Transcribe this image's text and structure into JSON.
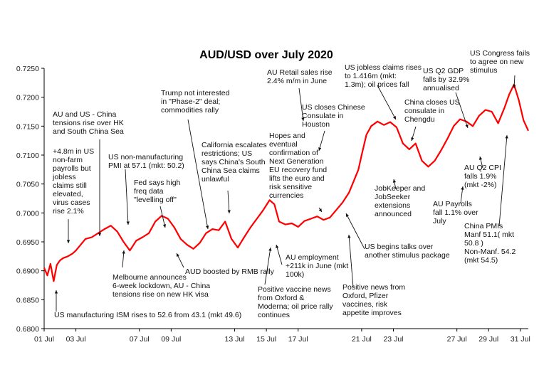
{
  "chart_data": {
    "type": "line",
    "title": "AUD/USD over July 2020",
    "xlabel": "",
    "ylabel": "",
    "ylim": [
      0.68,
      0.725
    ],
    "xlim_days": [
      1,
      31.5
    ],
    "grid": false,
    "x_ticks": [
      "01 Jul",
      "03 Jul",
      "07 Jul",
      "09 Jul",
      "13 Jul",
      "15 Jul",
      "17 Jul",
      "21 Jul",
      "23 Jul",
      "27 Jul",
      "29 Jul",
      "31 Jul"
    ],
    "y_ticks": [
      "0.6800",
      "0.6850",
      "0.6900",
      "0.6950",
      "0.7000",
      "0.7050",
      "0.7100",
      "0.7150",
      "0.7200",
      "0.7250"
    ],
    "series": [
      {
        "color": "#ff0000",
        "x": [
          1.0,
          1.2,
          1.4,
          1.6,
          1.8,
          2.0,
          2.2,
          2.5,
          2.8,
          3.0,
          3.3,
          3.6,
          4.0,
          4.4,
          4.8,
          5.2,
          5.6,
          6.0,
          6.4,
          6.8,
          7.2,
          7.6,
          8.0,
          8.4,
          8.8,
          9.2,
          9.6,
          10.0,
          10.4,
          10.8,
          11.2,
          11.6,
          12.0,
          12.4,
          12.8,
          13.2,
          13.6,
          14.0,
          14.4,
          14.8,
          15.2,
          15.5,
          15.8,
          16.2,
          16.6,
          17.0,
          17.4,
          17.8,
          18.2,
          18.6,
          19.0,
          19.4,
          19.8,
          20.2,
          20.5,
          20.8,
          21.0,
          21.3,
          21.6,
          22.0,
          22.4,
          22.8,
          23.2,
          23.6,
          24.0,
          24.4,
          24.8,
          25.2,
          25.6,
          26.0,
          26.4,
          26.8,
          27.2,
          27.6,
          28.0,
          28.4,
          28.8,
          29.2,
          29.6,
          30.0,
          30.3,
          30.6,
          30.9,
          31.2,
          31.5
        ],
        "y": [
          0.6905,
          0.6892,
          0.6912,
          0.6882,
          0.691,
          0.6918,
          0.6922,
          0.6925,
          0.693,
          0.6935,
          0.6945,
          0.6955,
          0.6958,
          0.6965,
          0.6972,
          0.6978,
          0.6968,
          0.695,
          0.6935,
          0.6952,
          0.6958,
          0.6965,
          0.6985,
          0.6995,
          0.699,
          0.6975,
          0.6955,
          0.6945,
          0.6938,
          0.6948,
          0.6965,
          0.6972,
          0.697,
          0.6985,
          0.6955,
          0.694,
          0.6958,
          0.6975,
          0.699,
          0.7005,
          0.7022,
          0.7015,
          0.6985,
          0.698,
          0.6982,
          0.6976,
          0.6986,
          0.699,
          0.6994,
          0.6988,
          0.6992,
          0.7005,
          0.7018,
          0.7035,
          0.7055,
          0.7075,
          0.71,
          0.7135,
          0.715,
          0.7158,
          0.7152,
          0.7157,
          0.7148,
          0.712,
          0.711,
          0.712,
          0.709,
          0.708,
          0.709,
          0.7108,
          0.7128,
          0.715,
          0.7162,
          0.7158,
          0.715,
          0.7168,
          0.7178,
          0.7175,
          0.7155,
          0.7182,
          0.7205,
          0.7222,
          0.7195,
          0.716,
          0.7142
        ]
      }
    ]
  },
  "annotations": [
    [
      "AU and US - China",
      "tensions rise over HK",
      "and South China Sea"
    ],
    [
      "+4.8m in US",
      "non-farm",
      "payrolls but",
      "jobless",
      "claims still",
      "elevated,",
      "virus cases",
      "rise 2.1%"
    ],
    [
      "US non-manufacturing",
      "PMI at 57.1 (mkt: 50.2)"
    ],
    [
      "Fed says high",
      "freq data",
      "\"levelling off\""
    ],
    [
      "Trump not interested",
      "in \"Phase-2\" deal;",
      "commodities rally"
    ],
    [
      "California escalates",
      "restrictions; US",
      "says China's South",
      "China Sea claims",
      "unlawful"
    ],
    [
      "AU Retail sales rise",
      "2.4% m/m in June"
    ],
    [
      "US jobless claims rises",
      "to 1.416m (mkt:",
      "1.3m); oil prices fall"
    ],
    [
      "US closes Chinese",
      "Consulate in",
      "Houston"
    ],
    [
      "Hopes and",
      "eventual",
      "confirmation of",
      "Next Generation",
      "EU recovery fund",
      "lifts the euro and",
      "risk sensitive",
      "currencies"
    ],
    [
      "US Q2 GDP",
      "falls by 32.9%",
      "annualised"
    ],
    [
      "US Congress fails",
      "to  agree on  new",
      "stimulus"
    ],
    [
      "China closes US",
      "consulate in",
      "Chengdu"
    ],
    [
      "JobKeeper and",
      "JobSeeker",
      "extensions",
      "announced"
    ],
    [
      "AU Q2 CPI",
      "falls 1.9%",
      "(mkt -2%)"
    ],
    [
      "AU Payrolls",
      "fall 1.1% over",
      "July"
    ],
    [
      "China PMIs",
      "Manf 51.1( mkt",
      "50.8 )",
      "Non-Manf. 54.2",
      "(mkt 54.5)"
    ],
    [
      "US begins talks over",
      "another stimulus package"
    ],
    [
      "Melbourne announces",
      "6-week lockdown, AU - China",
      "tensions rise on new HK visa"
    ],
    [
      "AUD boosted by RMB rally"
    ],
    [
      "AU employment",
      "+211k in June (mkt",
      "100k)"
    ],
    [
      "Positive vaccine news",
      "from Oxford &",
      "Moderna; oil price rally",
      "continues"
    ],
    [
      "Positive news from",
      "Oxford, Pfizer",
      "vaccines, risk",
      "appetite improves"
    ],
    [
      "US manufacturing ISM rises to 52.6 from 43.1 (mkt 49.6)"
    ]
  ]
}
